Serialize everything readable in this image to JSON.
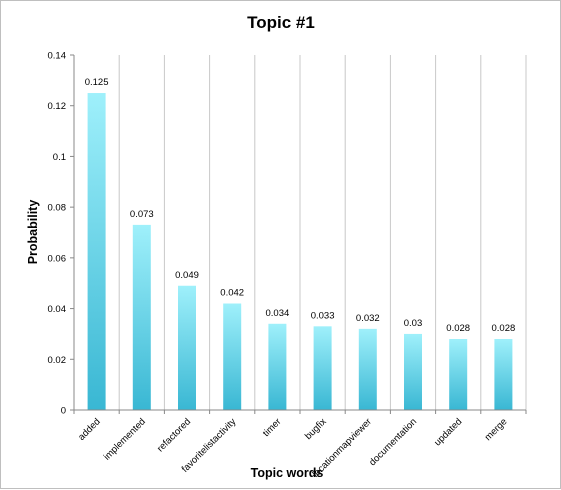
{
  "chart_data": {
    "type": "bar",
    "title": "Topic #1",
    "xlabel": "Topic words",
    "ylabel": "Probability",
    "categories": [
      "added",
      "implemented",
      "refactored",
      "favoritelistactivity",
      "timer",
      "bugfix",
      "locationmapviewer",
      "documentation",
      "updated",
      "merge"
    ],
    "values": [
      0.125,
      0.073,
      0.049,
      0.042,
      0.034,
      0.033,
      0.032,
      0.03,
      0.028,
      0.028
    ],
    "data_labels": [
      "0.125",
      "0.073",
      "0.049",
      "0.042",
      "0.034",
      "0.033",
      "0.032",
      "0.03",
      "0.028",
      "0.028"
    ],
    "yticks": [
      0,
      0.02,
      0.04,
      0.06,
      0.08,
      0.1,
      0.12,
      0.14
    ],
    "ytick_labels": [
      "0",
      "0.02",
      "0.04",
      "0.06",
      "0.08",
      "0.1",
      "0.12",
      "0.14"
    ],
    "ylim": [
      0,
      0.14
    ],
    "grid": "vertical category separators",
    "legend": "none",
    "colors": {
      "bar_light": "#9ff0fb",
      "bar_dark": "#39b7d3",
      "axis": "#888888",
      "grid": "#c8c8c8"
    }
  }
}
